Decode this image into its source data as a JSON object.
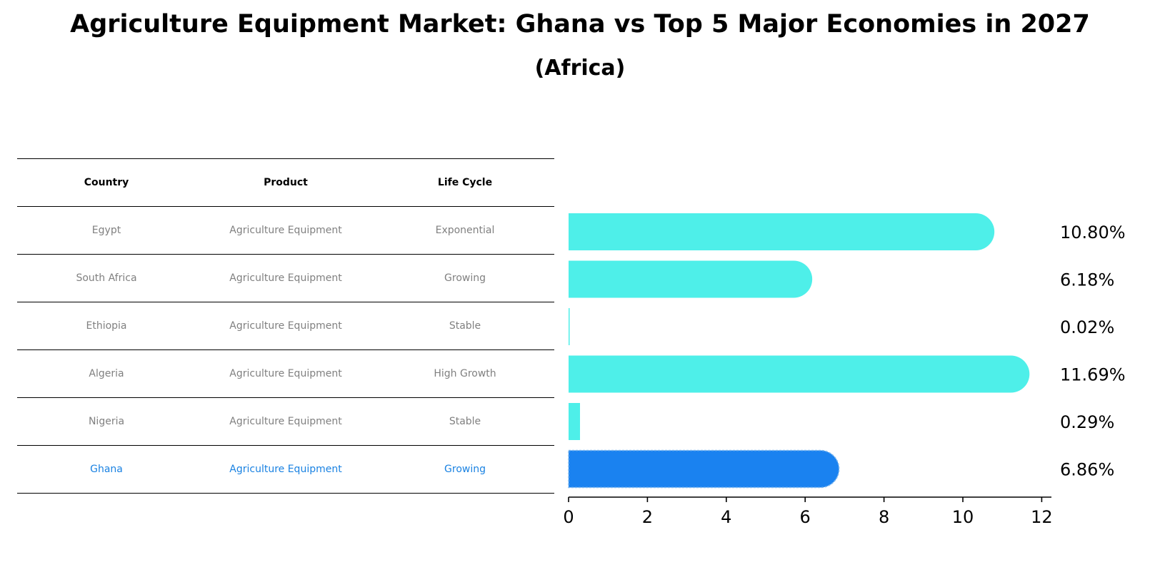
{
  "chart_data": {
    "type": "bar",
    "orientation": "horizontal",
    "title": "Agriculture Equipment Market: Ghana vs Top 5 Major Economies in 2027",
    "subtitle": "(Africa)",
    "categories": [
      "Egypt",
      "South Africa",
      "Ethiopia",
      "Algeria",
      "Nigeria",
      "Ghana"
    ],
    "values": [
      10.8,
      6.18,
      0.02,
      11.69,
      0.29,
      6.86
    ],
    "value_labels": [
      "10.80%",
      "6.18%",
      "0.02%",
      "11.69%",
      "0.29%",
      "6.86%"
    ],
    "highlight": "Ghana",
    "xlim": [
      0,
      12.2
    ],
    "xticks": [
      0,
      2,
      4,
      6,
      8,
      10,
      12
    ],
    "xlabel": "",
    "ylabel": "",
    "grid": false,
    "colors": {
      "default": "#4eefe9",
      "highlight": "#1a82f0"
    }
  },
  "table": {
    "headers": [
      "Country",
      "Product",
      "Life Cycle"
    ],
    "rows": [
      [
        "Egypt",
        "Agriculture Equipment",
        "Exponential"
      ],
      [
        "South Africa",
        "Agriculture Equipment",
        "Growing"
      ],
      [
        "Ethiopia",
        "Agriculture Equipment",
        "Stable"
      ],
      [
        "Algeria",
        "Agriculture Equipment",
        "High Growth"
      ],
      [
        "Nigeria",
        "Agriculture Equipment",
        "Stable"
      ],
      [
        "Ghana",
        "Agriculture Equipment",
        "Growing"
      ]
    ]
  }
}
